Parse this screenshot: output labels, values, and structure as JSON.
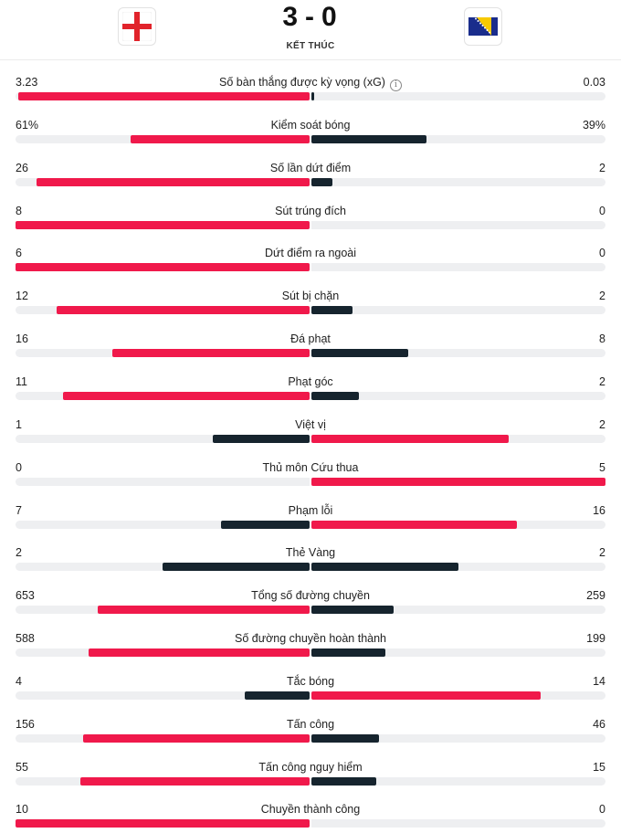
{
  "match": {
    "home_team_flag": "england-flag-icon",
    "away_team_flag": "bosnia-herzegovina-flag-icon",
    "home_score": "3",
    "away_score": "0",
    "separator": "-",
    "status": "KẾT THÚC"
  },
  "colors": {
    "winner_bar": "#f0194b",
    "loser_bar": "#16242e",
    "track": "#eeeff1"
  },
  "stats": [
    {
      "label": "Số bàn thắng được kỳ vọng (xG)",
      "home": "3.23",
      "away": "0.03",
      "home_fill": 0.99,
      "away_fill": 0.01,
      "info": true
    },
    {
      "label": "Kiểm soát bóng",
      "home": "61%",
      "away": "39%",
      "home_fill": 0.61,
      "away_fill": 0.39
    },
    {
      "label": "Số lần dứt điểm",
      "home": "26",
      "away": "2",
      "home_fill": 0.93,
      "away_fill": 0.07
    },
    {
      "label": "Sút trúng đích",
      "home": "8",
      "away": "0",
      "home_fill": 1.0,
      "away_fill": 0.0
    },
    {
      "label": "Dứt điểm ra ngoài",
      "home": "6",
      "away": "0",
      "home_fill": 1.0,
      "away_fill": 0.0
    },
    {
      "label": "Sút bị chặn",
      "home": "12",
      "away": "2",
      "home_fill": 0.86,
      "away_fill": 0.14
    },
    {
      "label": "Đá phạt",
      "home": "16",
      "away": "8",
      "home_fill": 0.67,
      "away_fill": 0.33
    },
    {
      "label": "Phạt góc",
      "home": "11",
      "away": "2",
      "home_fill": 0.84,
      "away_fill": 0.16
    },
    {
      "label": "Việt vị",
      "home": "1",
      "away": "2",
      "home_fill": 0.33,
      "away_fill": 0.67
    },
    {
      "label": "Thủ môn Cứu thua",
      "home": "0",
      "away": "5",
      "home_fill": 0.0,
      "away_fill": 1.0
    },
    {
      "label": "Phạm lỗi",
      "home": "7",
      "away": "16",
      "home_fill": 0.3,
      "away_fill": 0.7
    },
    {
      "label": "Thẻ Vàng",
      "home": "2",
      "away": "2",
      "home_fill": 0.5,
      "away_fill": 0.5
    },
    {
      "label": "Tổng số đường chuyền",
      "home": "653",
      "away": "259",
      "home_fill": 0.72,
      "away_fill": 0.28
    },
    {
      "label": "Số đường chuyền hoàn thành",
      "home": "588",
      "away": "199",
      "home_fill": 0.75,
      "away_fill": 0.25
    },
    {
      "label": "Tắc bóng",
      "home": "4",
      "away": "14",
      "home_fill": 0.22,
      "away_fill": 0.78
    },
    {
      "label": "Tấn công",
      "home": "156",
      "away": "46",
      "home_fill": 0.77,
      "away_fill": 0.23
    },
    {
      "label": "Tấn công nguy hiểm",
      "home": "55",
      "away": "15",
      "home_fill": 0.78,
      "away_fill": 0.22
    },
    {
      "label": "Chuyền thành công",
      "home": "10",
      "away": "0",
      "home_fill": 1.0,
      "away_fill": 0.0
    }
  ]
}
